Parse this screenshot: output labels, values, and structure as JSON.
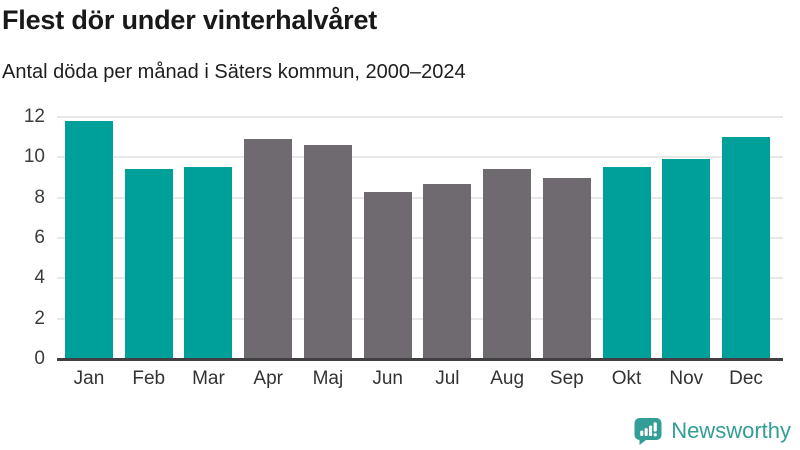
{
  "header": {
    "title": "Flest dör under vinterhalvåret",
    "subtitle": "Antal döda per månad i Säters kommun, 2000–2024"
  },
  "chart_data": {
    "type": "bar",
    "title": "Flest dör under vinterhalvåret",
    "subtitle": "Antal döda per månad i Säters kommun, 2000–2024",
    "categories": [
      "Jan",
      "Feb",
      "Mar",
      "Apr",
      "Maj",
      "Jun",
      "Jul",
      "Aug",
      "Sep",
      "Okt",
      "Nov",
      "Dec"
    ],
    "values": [
      11.8,
      9.4,
      9.5,
      10.9,
      10.6,
      8.3,
      8.7,
      9.4,
      9.0,
      9.5,
      9.9,
      11.0
    ],
    "bar_groups": [
      "winter",
      "winter",
      "winter",
      "summer",
      "summer",
      "summer",
      "summer",
      "summer",
      "summer",
      "winter",
      "winter",
      "winter"
    ],
    "palette": {
      "winter": "#00a09a",
      "summer": "#6e6a70"
    },
    "xlabel": "",
    "ylabel": "",
    "ylim": [
      0,
      12
    ],
    "y_ticks": [
      0,
      2,
      4,
      6,
      8,
      10,
      12
    ],
    "grid": "horizontal",
    "legend": "none"
  },
  "colors": {
    "grid": "#e8e8e8",
    "axis": "#413f42",
    "tick_text": "#3c3c3c"
  },
  "footer": {
    "brand": "Newsworthy",
    "brand_color": "#339e96"
  }
}
